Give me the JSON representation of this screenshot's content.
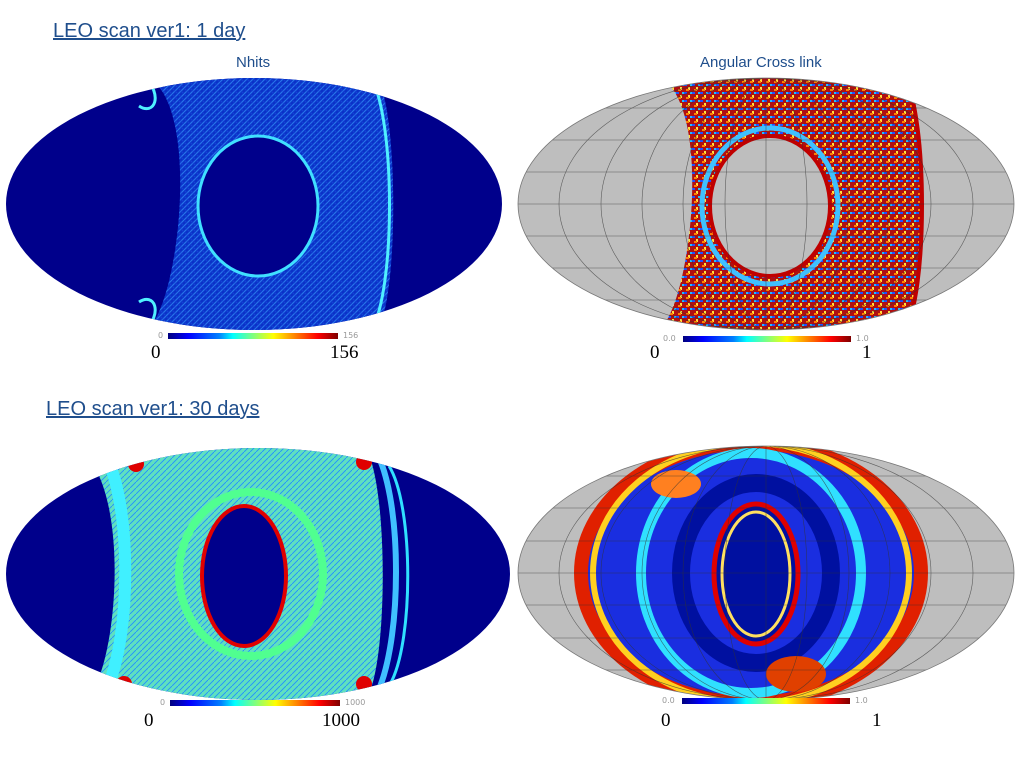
{
  "headings": {
    "day1": "LEO scan ver1: 1 day",
    "day30": "LEO scan ver1: 30 days"
  },
  "panel_titles": {
    "nhits": "Nhits",
    "crosslink": "Angular Cross link"
  },
  "colorbars": {
    "p1": {
      "min_small": "0",
      "max_small": "156",
      "min": "0",
      "max": "156"
    },
    "p2": {
      "min_small": "0.0",
      "max_small": "1.0",
      "min": "0",
      "max": "1"
    },
    "p3": {
      "min_small": "0",
      "max_small": "1000",
      "min": "0",
      "max": "1000"
    },
    "p4": {
      "min_small": "0.0",
      "max_small": "1.0",
      "min": "0",
      "max": "1"
    }
  },
  "colors": {
    "title": "#1f4e8c",
    "background_map": "#00008b",
    "masked": "#bebebe"
  }
}
